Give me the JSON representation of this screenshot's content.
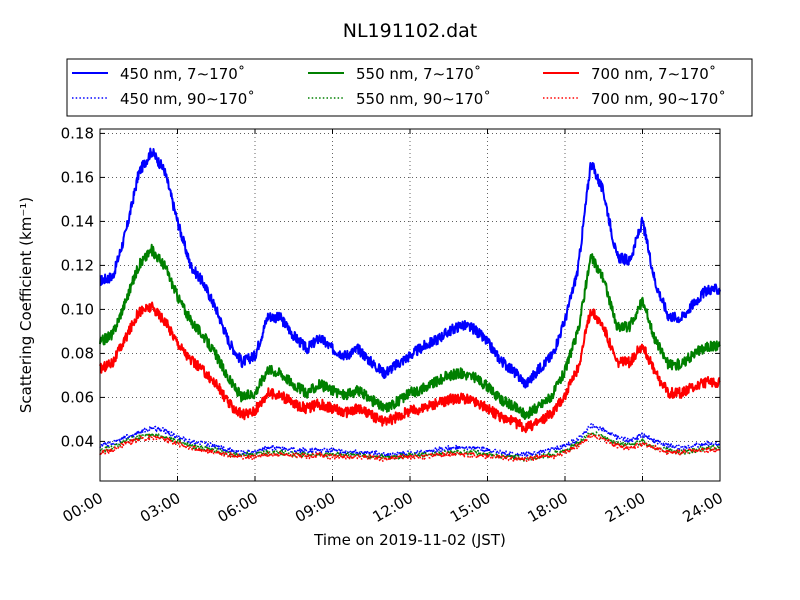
{
  "chart_data": {
    "type": "line",
    "title": "NL191102.dat",
    "xlabel": "Time on 2019-11-02 (JST)",
    "ylabel": "Scattering Coefficient (km⁻¹)",
    "xlim": [
      0,
      24
    ],
    "ylim": [
      0.022,
      0.182
    ],
    "grid": true,
    "legend_position": "top",
    "x_ticks": [
      0,
      3,
      6,
      9,
      12,
      15,
      18,
      21,
      24
    ],
    "x_tick_labels": [
      "00:00",
      "03:00",
      "06:00",
      "09:00",
      "12:00",
      "15:00",
      "18:00",
      "21:00",
      "24:00"
    ],
    "y_ticks": [
      0.04,
      0.06,
      0.08,
      0.1,
      0.12,
      0.14,
      0.16,
      0.18
    ],
    "y_tick_labels": [
      "0.04",
      "0.06",
      "0.08",
      "0.10",
      "0.12",
      "0.14",
      "0.16",
      "0.18"
    ],
    "x": [
      0,
      0.5,
      1,
      1.5,
      2,
      2.5,
      3,
      3.5,
      4,
      4.5,
      5,
      5.5,
      6,
      6.5,
      7,
      7.5,
      8,
      8.5,
      9,
      9.5,
      10,
      10.5,
      11,
      11.5,
      12,
      12.5,
      13,
      13.5,
      14,
      14.5,
      15,
      15.5,
      16,
      16.5,
      17,
      17.5,
      18,
      18.5,
      19,
      19.5,
      20,
      20.5,
      21,
      21.5,
      22,
      22.5,
      23,
      23.5,
      24
    ],
    "series": [
      {
        "name": "450 nm, 7∼170˚",
        "color": "#0000ff",
        "style": "solid",
        "values": [
          0.113,
          0.115,
          0.135,
          0.162,
          0.172,
          0.163,
          0.14,
          0.12,
          0.112,
          0.1,
          0.085,
          0.076,
          0.079,
          0.097,
          0.096,
          0.088,
          0.082,
          0.087,
          0.082,
          0.079,
          0.082,
          0.076,
          0.071,
          0.075,
          0.079,
          0.083,
          0.086,
          0.09,
          0.093,
          0.091,
          0.085,
          0.077,
          0.072,
          0.066,
          0.073,
          0.079,
          0.095,
          0.118,
          0.167,
          0.153,
          0.124,
          0.122,
          0.14,
          0.112,
          0.097,
          0.096,
          0.103,
          0.109,
          0.109
        ]
      },
      {
        "name": "450 nm, 90∼170˚",
        "color": "#0000ff",
        "style": "dotted",
        "values": [
          0.038,
          0.039,
          0.042,
          0.044,
          0.046,
          0.045,
          0.042,
          0.04,
          0.039,
          0.038,
          0.036,
          0.035,
          0.035,
          0.037,
          0.037,
          0.036,
          0.036,
          0.036,
          0.036,
          0.035,
          0.035,
          0.035,
          0.034,
          0.034,
          0.035,
          0.035,
          0.036,
          0.037,
          0.037,
          0.037,
          0.036,
          0.035,
          0.034,
          0.034,
          0.035,
          0.036,
          0.038,
          0.041,
          0.047,
          0.045,
          0.042,
          0.04,
          0.043,
          0.04,
          0.038,
          0.037,
          0.038,
          0.039,
          0.039
        ]
      },
      {
        "name": "550 nm, 7∼170˚",
        "color": "#008000",
        "style": "solid",
        "values": [
          0.085,
          0.089,
          0.104,
          0.12,
          0.127,
          0.12,
          0.106,
          0.095,
          0.088,
          0.079,
          0.068,
          0.06,
          0.062,
          0.073,
          0.071,
          0.066,
          0.062,
          0.066,
          0.063,
          0.061,
          0.063,
          0.059,
          0.055,
          0.058,
          0.062,
          0.064,
          0.067,
          0.07,
          0.071,
          0.069,
          0.065,
          0.059,
          0.056,
          0.052,
          0.056,
          0.061,
          0.072,
          0.09,
          0.124,
          0.114,
          0.092,
          0.092,
          0.104,
          0.086,
          0.075,
          0.075,
          0.08,
          0.083,
          0.084
        ]
      },
      {
        "name": "550 nm, 90∼170˚",
        "color": "#008000",
        "style": "dotted",
        "values": [
          0.036,
          0.037,
          0.04,
          0.042,
          0.043,
          0.042,
          0.04,
          0.038,
          0.037,
          0.036,
          0.034,
          0.034,
          0.034,
          0.035,
          0.035,
          0.034,
          0.034,
          0.034,
          0.034,
          0.034,
          0.034,
          0.033,
          0.033,
          0.033,
          0.034,
          0.034,
          0.034,
          0.035,
          0.035,
          0.035,
          0.034,
          0.033,
          0.033,
          0.032,
          0.033,
          0.034,
          0.036,
          0.039,
          0.044,
          0.042,
          0.039,
          0.038,
          0.04,
          0.037,
          0.036,
          0.035,
          0.036,
          0.037,
          0.037
        ]
      },
      {
        "name": "700 nm, 7∼170˚",
        "color": "#ff0000",
        "style": "solid",
        "values": [
          0.073,
          0.076,
          0.087,
          0.099,
          0.101,
          0.095,
          0.085,
          0.077,
          0.072,
          0.066,
          0.057,
          0.052,
          0.054,
          0.062,
          0.061,
          0.057,
          0.055,
          0.057,
          0.055,
          0.053,
          0.055,
          0.052,
          0.049,
          0.051,
          0.054,
          0.055,
          0.057,
          0.059,
          0.06,
          0.058,
          0.055,
          0.051,
          0.049,
          0.046,
          0.049,
          0.053,
          0.061,
          0.073,
          0.1,
          0.092,
          0.076,
          0.076,
          0.084,
          0.071,
          0.062,
          0.062,
          0.065,
          0.067,
          0.067
        ]
      },
      {
        "name": "700 nm, 90∼170˚",
        "color": "#ff0000",
        "style": "dotted",
        "values": [
          0.035,
          0.036,
          0.039,
          0.041,
          0.042,
          0.041,
          0.039,
          0.037,
          0.036,
          0.035,
          0.034,
          0.033,
          0.033,
          0.034,
          0.034,
          0.034,
          0.033,
          0.034,
          0.033,
          0.033,
          0.033,
          0.033,
          0.032,
          0.033,
          0.033,
          0.033,
          0.034,
          0.034,
          0.034,
          0.034,
          0.033,
          0.033,
          0.032,
          0.032,
          0.033,
          0.033,
          0.035,
          0.038,
          0.043,
          0.041,
          0.038,
          0.037,
          0.039,
          0.037,
          0.035,
          0.035,
          0.036,
          0.036,
          0.036
        ]
      }
    ]
  }
}
